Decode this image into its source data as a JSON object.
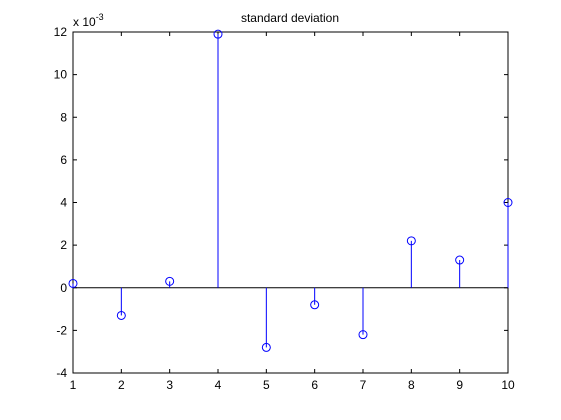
{
  "chart_data": {
    "type": "stem",
    "title": "standard deviation",
    "xlabel": "",
    "ylabel": "",
    "y_multiplier_label": {
      "prefix": "x 10",
      "exponent": "-3"
    },
    "xlim": [
      1,
      10
    ],
    "ylim": [
      -4,
      12
    ],
    "xticks": [
      "1",
      "2",
      "3",
      "4",
      "5",
      "6",
      "7",
      "8",
      "9",
      "10"
    ],
    "yticks": [
      "-4",
      "-2",
      "0",
      "2",
      "4",
      "6",
      "8",
      "10",
      "12"
    ],
    "grid": false,
    "series": [
      {
        "color": "#0000ff",
        "marker": "circle",
        "x": [
          1,
          2,
          3,
          4,
          5,
          6,
          7,
          8,
          9,
          10
        ],
        "y": [
          0.2,
          -1.3,
          0.3,
          11.9,
          -2.8,
          -0.8,
          -2.2,
          2.2,
          1.3,
          4.0
        ]
      }
    ]
  }
}
